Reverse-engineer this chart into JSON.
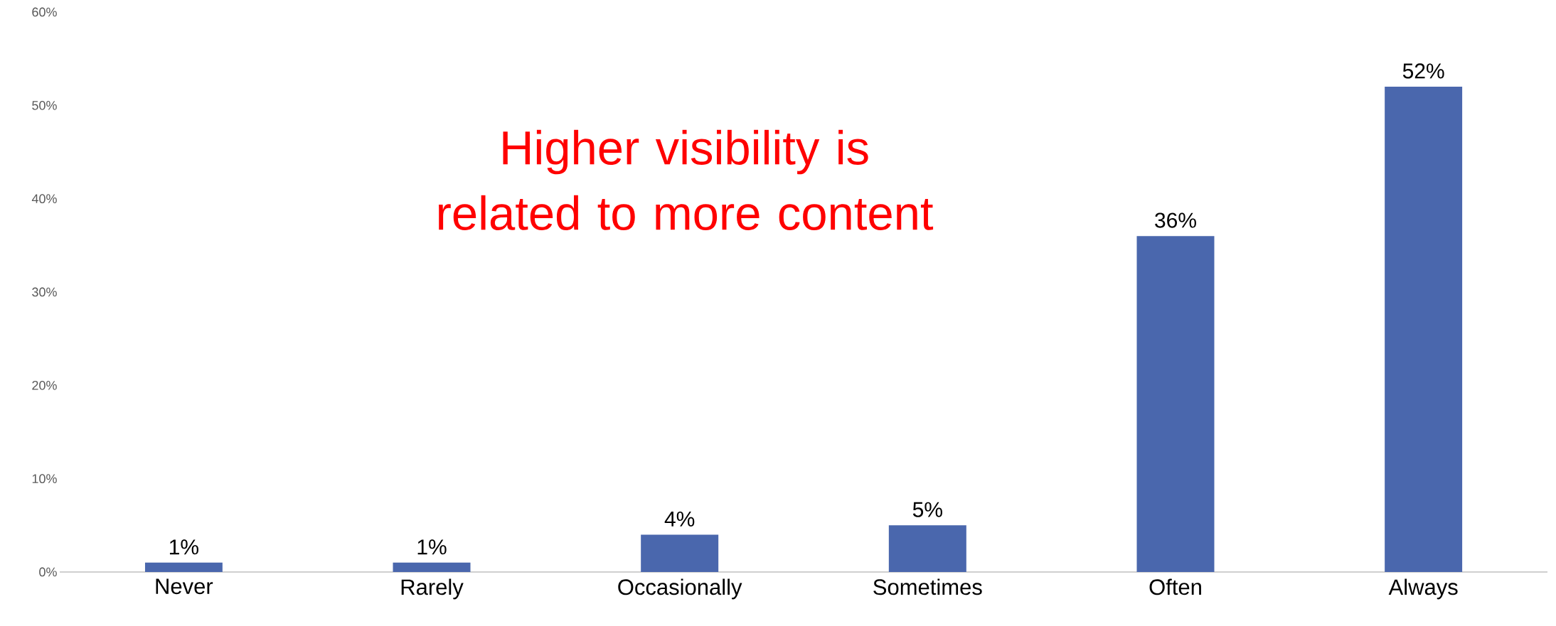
{
  "chart_data": {
    "type": "bar",
    "categories": [
      "Never",
      "Rarely",
      "Occasionally",
      "Sometimes",
      "Often",
      "Always"
    ],
    "values": [
      1,
      1,
      4,
      5,
      36,
      52
    ],
    "value_labels": [
      "1%",
      "1%",
      "4%",
      "5%",
      "36%",
      "52%"
    ],
    "color": "#4a67ad",
    "ylim": [
      0,
      60
    ],
    "yticks": [
      {
        "value": 0,
        "label": "0%"
      },
      {
        "value": 10,
        "label": "10%"
      },
      {
        "value": 20,
        "label": "20%"
      },
      {
        "value": 30,
        "label": "30%"
      },
      {
        "value": 40,
        "label": "40%"
      },
      {
        "value": 50,
        "label": "50%"
      },
      {
        "value": 60,
        "label": "60%"
      }
    ],
    "grid": false,
    "annotations": [
      "Higher visibility is related to  more content"
    ]
  }
}
